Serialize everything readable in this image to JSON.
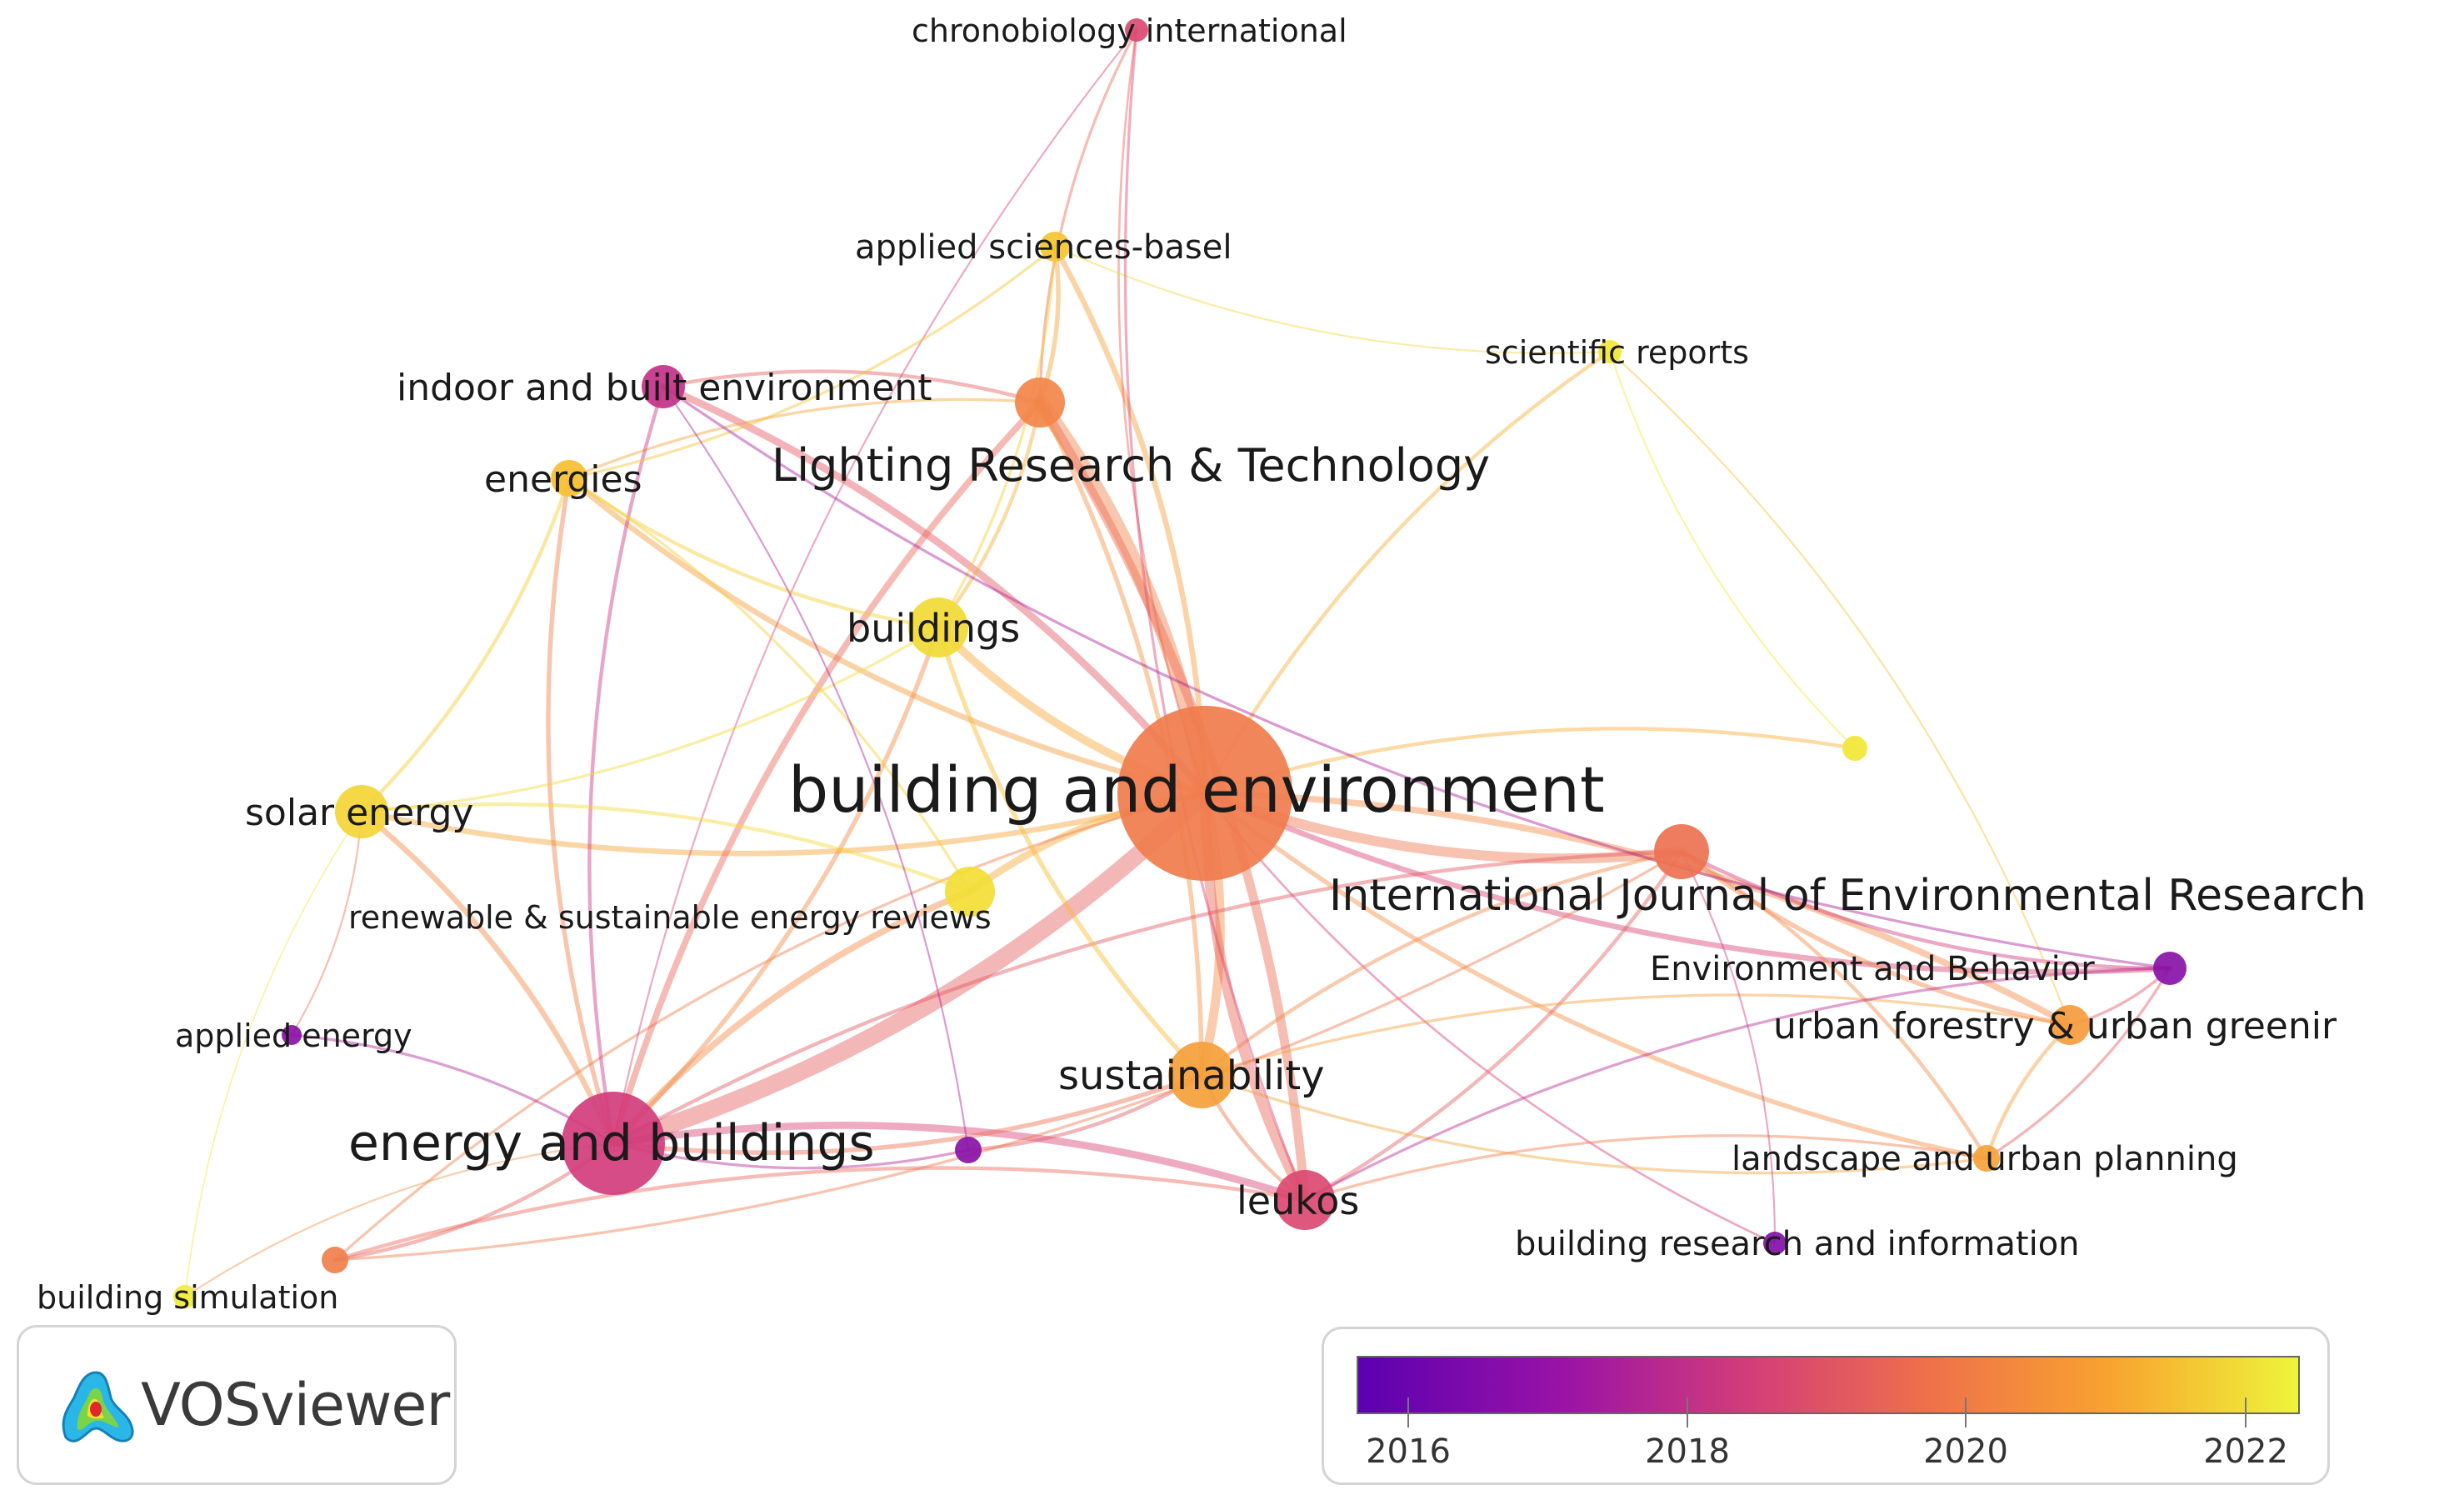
{
  "nodes": [
    {
      "id": "building-and-environment",
      "label": "building and environment",
      "year": 2019.5,
      "weight": 90
    },
    {
      "id": "lighting-research-technology",
      "label": "Lighting Research & Technology",
      "year": 2019.8,
      "weight": 28
    },
    {
      "id": "energy-and-buildings",
      "label": "energy and buildings",
      "year": 2017.9,
      "weight": 45
    },
    {
      "id": "international-journal-of-environmental-research",
      "label": "International Journal of Environmental Research",
      "year": 2019.2,
      "weight": 32
    },
    {
      "id": "sustainability",
      "label": "sustainability",
      "year": 2020.5,
      "weight": 30
    },
    {
      "id": "leukos",
      "label": "leukos",
      "year": 2018.2,
      "weight": 30
    },
    {
      "id": "buildings",
      "label": "buildings",
      "year": 2021.9,
      "weight": 22
    },
    {
      "id": "indoor-and-built-environment",
      "label": "indoor and built environment",
      "year": 2017.6,
      "weight": 20
    },
    {
      "id": "energies",
      "label": "energies",
      "year": 2021.3,
      "weight": 16
    },
    {
      "id": "applied-sciences-basel",
      "label": "applied sciences-basel",
      "year": 2021.4,
      "weight": 14
    },
    {
      "id": "solar-energy",
      "label": "solar energy",
      "year": 2021.8,
      "weight": 20
    },
    {
      "id": "renewable-sustainable-energy-reviews",
      "label": "renewable & sustainable energy reviews",
      "year": 2022.0,
      "weight": 20
    },
    {
      "id": "scientific-reports",
      "label": "scientific reports",
      "year": 2022.2,
      "weight": 10
    },
    {
      "id": "chronobiology-international",
      "label": "chronobiology international",
      "year": 2018.2,
      "weight": 8
    },
    {
      "id": "environment-and-behavior",
      "label": "Environment and Behavior",
      "year": 2016.6,
      "weight": 12
    },
    {
      "id": "urban-forestry-urban-greening",
      "label": "urban forestry & urban greenir",
      "year": 2020.4,
      "weight": 14
    },
    {
      "id": "landscape-and-urban-planning",
      "label": "landscape and urban planning",
      "year": 2020.6,
      "weight": 12
    },
    {
      "id": "building-research-and-information",
      "label": "building research and information",
      "year": 2016.5,
      "weight": 8
    },
    {
      "id": "applied-energy",
      "label": "applied energy",
      "year": 2016.6,
      "weight": 8
    },
    {
      "id": "building-simulation",
      "label": "building simulation",
      "year": 2022.3,
      "weight": 8
    },
    {
      "id": "unlabeled-yellow",
      "label": "",
      "year": 2022.2,
      "weight": 10
    },
    {
      "id": "unlabeled-purple",
      "label": "",
      "year": 2016.6,
      "weight": 10
    },
    {
      "id": "unlabeled-orange",
      "label": "",
      "year": 2019.6,
      "weight": 10
    }
  ],
  "legend": {
    "ticks": [
      "2016",
      "2018",
      "2020",
      "2022"
    ],
    "colors": [
      "#5b00b0",
      "#a31aa3",
      "#d9466e",
      "#f2823f",
      "#f7b42f",
      "#f2f23d"
    ]
  },
  "logo": {
    "text": "VOSviewer"
  }
}
